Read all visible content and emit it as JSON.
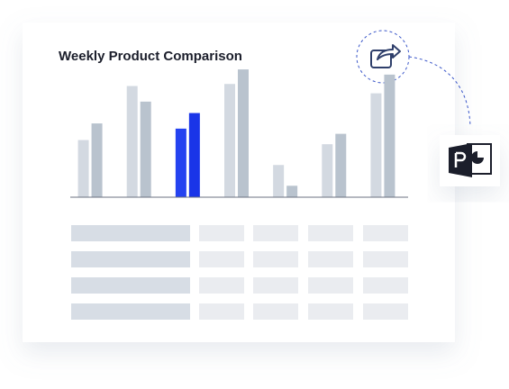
{
  "chart_data": {
    "type": "bar",
    "title": "Weekly Product Comparison",
    "categories": [
      null,
      null,
      null,
      null,
      null,
      null,
      null
    ],
    "series": [
      {
        "color": "#d3d9e1",
        "values": [
          55,
          107,
          66,
          109,
          31,
          51,
          100
        ]
      },
      {
        "color": "#b9c3ce",
        "values": [
          71,
          92,
          81,
          123,
          11,
          61,
          118
        ]
      }
    ],
    "highlight": {
      "index": 2,
      "colors": [
        "#2442f0",
        "#1a35e8"
      ]
    },
    "ylim": [
      0,
      130
    ]
  }
}
